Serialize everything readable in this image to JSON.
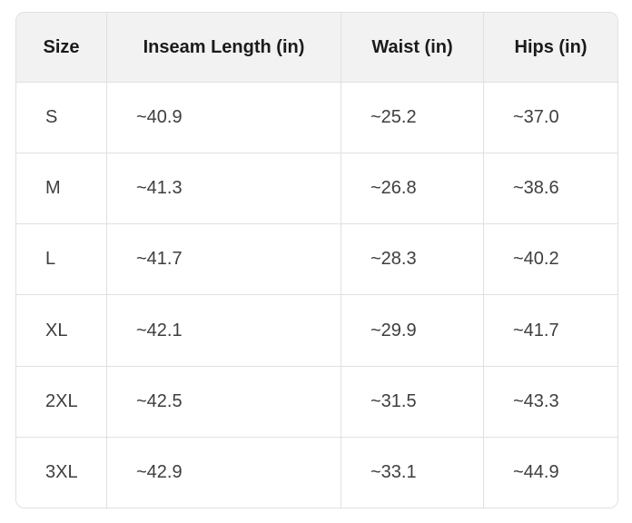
{
  "chart_data": {
    "type": "table",
    "columns": [
      "Size",
      "Inseam Length (in)",
      "Waist (in)",
      "Hips (in)"
    ],
    "rows": [
      [
        "S",
        "~40.9",
        "~25.2",
        "~37.0"
      ],
      [
        "M",
        "~41.3",
        "~26.8",
        "~38.6"
      ],
      [
        "L",
        "~41.7",
        "~28.3",
        "~40.2"
      ],
      [
        "XL",
        "~42.1",
        "~29.9",
        "~41.7"
      ],
      [
        "2XL",
        "~42.5",
        "~31.5",
        "~43.3"
      ],
      [
        "3XL",
        "~42.9",
        "~33.1",
        "~44.9"
      ]
    ],
    "layout": {
      "header_align": "center",
      "body_align": "left",
      "grid": true
    }
  },
  "colors": {
    "page_bg": "#ffffff",
    "header_bg": "#f2f2f2",
    "border": "#e0e0e0",
    "header_text": "#1b1b1b",
    "body_text": "#3e3e3e"
  }
}
